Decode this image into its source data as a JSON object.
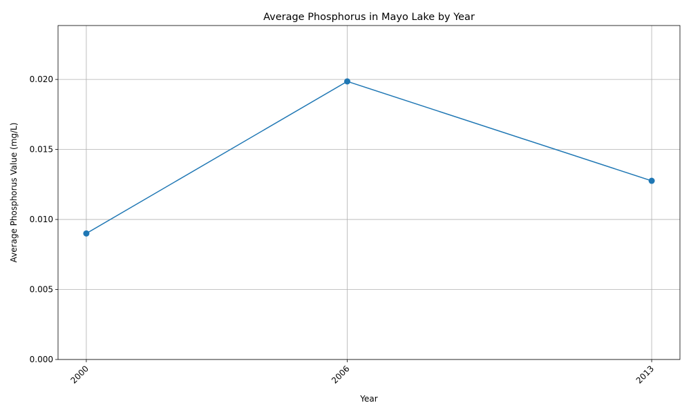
{
  "chart_data": {
    "type": "line",
    "title": "Average Phosphorus in Mayo Lake by Year",
    "xlabel": "Year",
    "ylabel": "Average Phosphorus Value (mg/L)",
    "x": [
      2000,
      2006,
      2013
    ],
    "x_tick_labels": [
      "2000",
      "2006",
      "2013"
    ],
    "series": [
      {
        "values": [
          0.009,
          0.01986,
          0.01276
        ],
        "color": "#1f77b4",
        "marker": "circle"
      }
    ],
    "xlim": [
      1999.35,
      2013.65
    ],
    "ylim": [
      0,
      0.02385
    ],
    "y_ticks": [
      0,
      0.005,
      0.01,
      0.015,
      0.02
    ],
    "y_tick_labels": [
      "0.000",
      "0.005",
      "0.010",
      "0.015",
      "0.020"
    ],
    "grid": true,
    "x_tick_rotation": "45deg"
  }
}
